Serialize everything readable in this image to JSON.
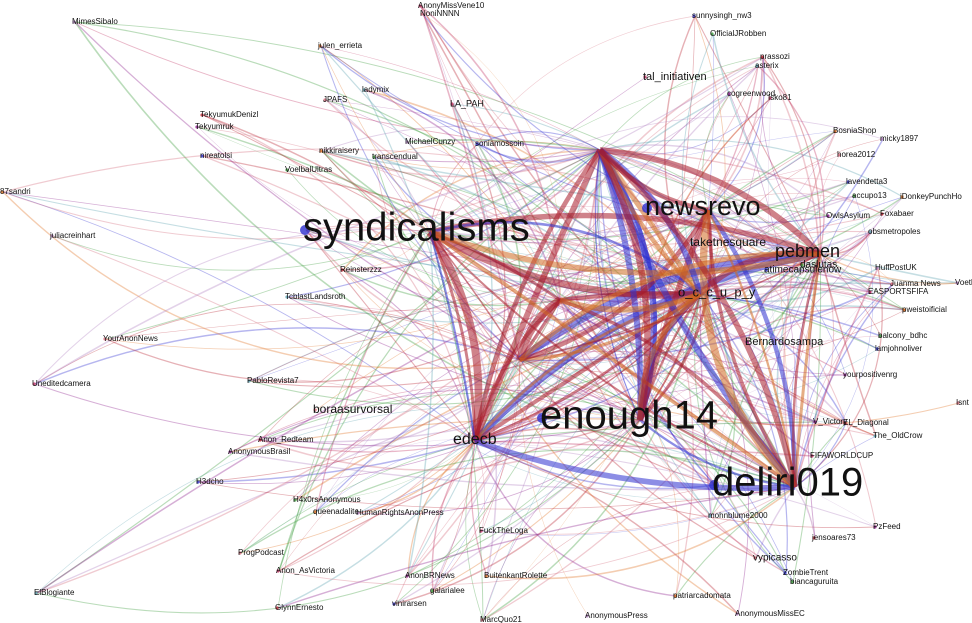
{
  "nodes": [
    {
      "label": "syndicalisms"
    },
    {
      "label": "enough14"
    },
    {
      "label": "deliri019"
    },
    {
      "label": "newsrevo"
    },
    {
      "label": "pebmen"
    },
    {
      "label": "edecb"
    },
    {
      "label": "boraasurvorsal"
    },
    {
      "label": "tal_initiativen"
    },
    {
      "label": "taketnesquare"
    },
    {
      "label": "o_c_c_u_p_y"
    },
    {
      "label": "Bernardosampa"
    },
    {
      "label": "sunnysingh_nw3"
    },
    {
      "label": "OfficialJRobben"
    },
    {
      "label": "julen_errieta"
    },
    {
      "label": "MimesSibalo"
    },
    {
      "label": "JPAFS"
    },
    {
      "label": "LA_PAH"
    },
    {
      "label": "ladymix"
    },
    {
      "label": "TekyumukDenizl"
    },
    {
      "label": "Tekyumruk"
    },
    {
      "label": "nireatolsi"
    },
    {
      "label": "VoelbalUltras"
    },
    {
      "label": "87sandri"
    },
    {
      "label": "juliacreinhart"
    },
    {
      "label": "YourAnonNews"
    },
    {
      "label": "Uneditedcamera"
    },
    {
      "label": "PabloRevista7"
    },
    {
      "label": "Anon_Redteam"
    },
    {
      "label": "AnonymousBrasil"
    },
    {
      "label": "H3dcho"
    },
    {
      "label": "H4x0rsAnonymous"
    },
    {
      "label": "queenadalite"
    },
    {
      "label": "HumanRightsAnonPress"
    },
    {
      "label": "ProgPodcast"
    },
    {
      "label": "Anon_AsVictoria"
    },
    {
      "label": "ElBlogiante"
    },
    {
      "label": "GlynnErnesto"
    },
    {
      "label": "AnonBRNews"
    },
    {
      "label": "vinirarsen"
    },
    {
      "label": "galarialee"
    },
    {
      "label": "BuitenkantRolette"
    },
    {
      "label": "AnonymousPress"
    },
    {
      "label": "MarcQuo21"
    },
    {
      "label": "FuckTheLoga"
    },
    {
      "label": "mohnblume2000"
    },
    {
      "label": "jensoares73"
    },
    {
      "label": "PzFeed"
    },
    {
      "label": "ZombieTrent"
    },
    {
      "label": "biancaguruita"
    },
    {
      "label": "patriarcadomata"
    },
    {
      "label": "AnonymousMissEC"
    },
    {
      "label": "vypicasso"
    },
    {
      "label": "FIFAWORLDCUP"
    },
    {
      "label": "The_OldCrow"
    },
    {
      "label": "EL_Diagonal"
    },
    {
      "label": "V_Victory"
    },
    {
      "label": "lamjohnoliver"
    },
    {
      "label": "balcony_bdhc"
    },
    {
      "label": "pweistoificial"
    },
    {
      "label": "HuffPostUK"
    },
    {
      "label": "Juanma News"
    },
    {
      "label": "EASPORTSFIFA"
    },
    {
      "label": "obsmetropoles"
    },
    {
      "label": "Foxabaer"
    },
    {
      "label": "OwlsAsylum"
    },
    {
      "label": "lavendetta3"
    },
    {
      "label": "accupo13"
    },
    {
      "label": "BosniaShop"
    },
    {
      "label": "micky1897"
    },
    {
      "label": "horea2012"
    },
    {
      "label": "Isko81"
    },
    {
      "label": "asterix"
    },
    {
      "label": "prassozi"
    },
    {
      "label": "cogreenwood"
    },
    {
      "label": "soniamossoin"
    },
    {
      "label": "transcendual"
    },
    {
      "label": "nikkiraisery"
    },
    {
      "label": "MichaelCunzy"
    },
    {
      "label": "NoniNNNN"
    },
    {
      "label": "AnonyMissVene10"
    },
    {
      "label": "TcblastLandsroth"
    },
    {
      "label": "Reinsterzzz"
    },
    {
      "label": "yourpositivenrg"
    },
    {
      "label": "atimecapsulenow"
    },
    {
      "label": "daslutas"
    },
    {
      "label": "iDonkeyPunchHo"
    },
    {
      "label": "Voetba"
    },
    {
      "label": "Isnt"
    }
  ]
}
